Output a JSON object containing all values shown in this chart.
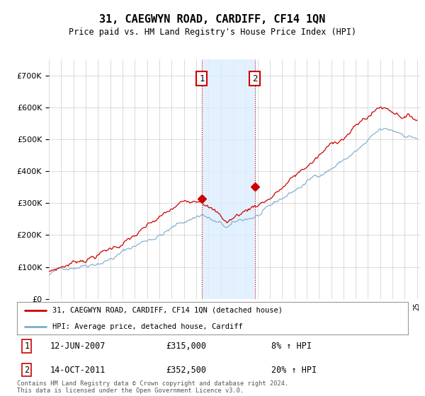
{
  "title": "31, CAEGWYN ROAD, CARDIFF, CF14 1QN",
  "subtitle": "Price paid vs. HM Land Registry's House Price Index (HPI)",
  "purchase1_date": "12-JUN-2007",
  "purchase1_price": 315000,
  "purchase1_hpi_pct": "8% ↑ HPI",
  "purchase2_date": "14-OCT-2011",
  "purchase2_price": 352500,
  "purchase2_hpi_pct": "20% ↑ HPI",
  "legend_line1": "31, CAEGWYN ROAD, CARDIFF, CF14 1QN (detached house)",
  "legend_line2": "HPI: Average price, detached house, Cardiff",
  "footer": "Contains HM Land Registry data © Crown copyright and database right 2024.\nThis data is licensed under the Open Government Licence v3.0.",
  "price_color": "#cc0000",
  "hpi_line_color": "#7aaacc",
  "annotation_box_color": "#cc0000",
  "shade_color": "#ddeeff",
  "bg_color": "#ffffff",
  "grid_color": "#cccccc",
  "ylim_min": 0,
  "ylim_max": 750000
}
